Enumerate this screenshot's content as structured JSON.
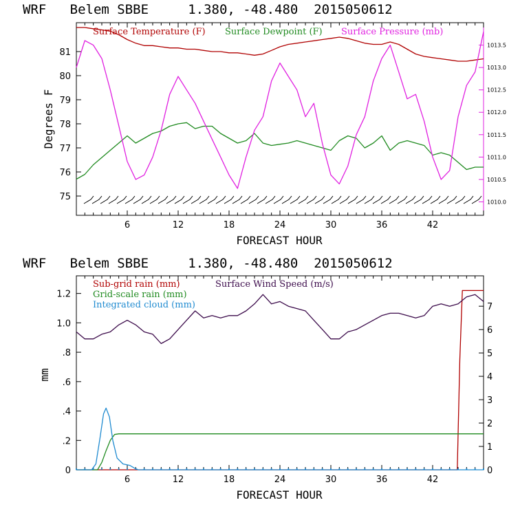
{
  "chart_data": [
    {
      "type": "line",
      "title": "WRF   Belem SBBE     1.380, -48.480  2015050612",
      "xlabel": "FORECAST HOUR",
      "ylabel": "Degrees F",
      "y2label": "",
      "xlim": [
        0,
        48
      ],
      "ylim": [
        74.2,
        82.2
      ],
      "y2lim": [
        1009.7,
        1014.0
      ],
      "x_ticks": [
        6,
        12,
        18,
        24,
        30,
        36,
        42
      ],
      "y_ticks": [
        75,
        76,
        77,
        78,
        79,
        80,
        81
      ],
      "y2_ticks": [
        "1010.0",
        "1010.5",
        "1011.0",
        "1011.5",
        "1012.0",
        "1012.5",
        "1013.0",
        "1013.5"
      ],
      "legend": [
        {
          "label": "Surface Temperature (F)",
          "color": "#b00000"
        },
        {
          "label": "Surface Dewpoint (F)",
          "color": "#1f8a1f"
        },
        {
          "label": "Surface Pressure (mb)",
          "color": "#e020e0"
        }
      ],
      "series": [
        {
          "name": "Surface Temperature (F)",
          "axis": "left",
          "color": "#b00000",
          "x": [
            0,
            1,
            2,
            3,
            4,
            5,
            6,
            7,
            8,
            9,
            10,
            11,
            12,
            13,
            14,
            15,
            16,
            17,
            18,
            19,
            20,
            21,
            22,
            23,
            24,
            25,
            26,
            27,
            28,
            29,
            30,
            31,
            32,
            33,
            34,
            35,
            36,
            37,
            38,
            39,
            40,
            41,
            42,
            43,
            44,
            45,
            46,
            47,
            48
          ],
          "values": [
            82.0,
            82.0,
            81.95,
            81.9,
            81.85,
            81.7,
            81.5,
            81.35,
            81.25,
            81.25,
            81.2,
            81.15,
            81.15,
            81.1,
            81.1,
            81.05,
            81.0,
            81.0,
            80.95,
            80.95,
            80.9,
            80.85,
            80.9,
            81.05,
            81.2,
            81.3,
            81.35,
            81.4,
            81.45,
            81.5,
            81.55,
            81.6,
            81.55,
            81.45,
            81.35,
            81.3,
            81.3,
            81.4,
            81.3,
            81.1,
            80.9,
            80.8,
            80.75,
            80.7,
            80.65,
            80.6,
            80.6,
            80.65,
            80.7
          ]
        },
        {
          "name": "Surface Dewpoint (F)",
          "axis": "left",
          "color": "#1f8a1f",
          "x": [
            0,
            1,
            2,
            3,
            4,
            5,
            6,
            7,
            8,
            9,
            10,
            11,
            12,
            13,
            14,
            15,
            16,
            17,
            18,
            19,
            20,
            21,
            22,
            23,
            24,
            25,
            26,
            27,
            28,
            29,
            30,
            31,
            32,
            33,
            34,
            35,
            36,
            37,
            38,
            39,
            40,
            41,
            42,
            43,
            44,
            45,
            46,
            47,
            48
          ],
          "values": [
            75.7,
            75.9,
            76.3,
            76.6,
            76.9,
            77.2,
            77.5,
            77.2,
            77.4,
            77.6,
            77.7,
            77.9,
            78.0,
            78.05,
            77.8,
            77.9,
            77.9,
            77.6,
            77.4,
            77.2,
            77.3,
            77.6,
            77.2,
            77.1,
            77.15,
            77.2,
            77.3,
            77.2,
            77.1,
            77.0,
            76.9,
            77.3,
            77.5,
            77.4,
            77.0,
            77.2,
            77.5,
            76.9,
            77.2,
            77.3,
            77.2,
            77.1,
            76.7,
            76.8,
            76.7,
            76.4,
            76.1,
            76.2,
            76.2
          ]
        },
        {
          "name": "Surface Pressure (mb)",
          "axis": "right",
          "color": "#e020e0",
          "x": [
            0,
            1,
            2,
            3,
            4,
            5,
            6,
            7,
            8,
            9,
            10,
            11,
            12,
            13,
            14,
            15,
            16,
            17,
            18,
            19,
            20,
            21,
            22,
            23,
            24,
            25,
            26,
            27,
            28,
            29,
            30,
            31,
            32,
            33,
            34,
            35,
            36,
            37,
            38,
            39,
            40,
            41,
            42,
            43,
            44,
            45,
            46,
            47,
            48
          ],
          "values": [
            1013.0,
            1013.6,
            1013.5,
            1013.2,
            1012.5,
            1011.7,
            1010.9,
            1010.5,
            1010.6,
            1011.0,
            1011.6,
            1012.4,
            1012.8,
            1012.5,
            1012.2,
            1011.8,
            1011.4,
            1011.0,
            1010.6,
            1010.3,
            1011.0,
            1011.6,
            1011.9,
            1012.7,
            1013.1,
            1012.8,
            1012.5,
            1011.9,
            1012.2,
            1011.3,
            1010.6,
            1010.4,
            1010.8,
            1011.5,
            1011.9,
            1012.7,
            1013.2,
            1013.5,
            1012.9,
            1012.3,
            1012.4,
            1011.8,
            1011.0,
            1010.5,
            1010.7,
            1011.9,
            1012.6,
            1012.9,
            1013.8
          ]
        }
      ]
    },
    {
      "type": "line",
      "title": "WRF   Belem SBBE     1.380, -48.480  2015050612",
      "xlabel": "FORECAST HOUR",
      "ylabel": "mm",
      "xlim": [
        0,
        48
      ],
      "ylim": [
        0,
        1.32
      ],
      "y2lim": [
        0,
        8.3
      ],
      "x_ticks": [
        6,
        12,
        18,
        24,
        30,
        36,
        42
      ],
      "y_ticks": [
        "0",
        ".2",
        ".4",
        ".6",
        ".8",
        "1.0",
        "1.2"
      ],
      "y_tick_values": [
        0,
        0.2,
        0.4,
        0.6,
        0.8,
        1.0,
        1.2
      ],
      "y2_ticks": [
        0,
        1,
        2,
        3,
        4,
        5,
        6,
        7
      ],
      "legend": [
        {
          "label": "Sub-grid rain (mm)",
          "color": "#b00000"
        },
        {
          "label": "Grid-scale rain (mm)",
          "color": "#1f8a1f"
        },
        {
          "label": "Integrated cloud (mm)",
          "color": "#1e8ad0"
        },
        {
          "label": "Surface Wind Speed (m/s)",
          "color": "#3b0a4a"
        }
      ],
      "series": [
        {
          "name": "Sub-grid rain (mm)",
          "axis": "left",
          "color": "#b00000",
          "x": [
            0,
            44.9,
            45.2,
            45.5,
            48
          ],
          "values": [
            0,
            0,
            0.75,
            1.22,
            1.22
          ]
        },
        {
          "name": "Grid-scale rain (mm)",
          "axis": "left",
          "color": "#1f8a1f",
          "x": [
            0,
            2.5,
            3.0,
            3.5,
            4.0,
            4.5,
            5.0,
            48
          ],
          "values": [
            0,
            0,
            0.05,
            0.13,
            0.2,
            0.24,
            0.245,
            0.245
          ]
        },
        {
          "name": "Integrated cloud (mm)",
          "axis": "left",
          "color": "#1e8ad0",
          "x": [
            0,
            1.8,
            2.3,
            2.8,
            3.2,
            3.5,
            3.9,
            4.3,
            4.8,
            5.5,
            6.3,
            6.9,
            7.3,
            48
          ],
          "values": [
            0,
            0,
            0.04,
            0.22,
            0.38,
            0.42,
            0.36,
            0.2,
            0.08,
            0.04,
            0.03,
            0.01,
            0,
            0
          ]
        },
        {
          "name": "Surface Wind Speed (m/s)",
          "axis": "right",
          "color": "#3b0a4a",
          "x": [
            0,
            1,
            2,
            3,
            4,
            5,
            6,
            7,
            8,
            9,
            10,
            11,
            12,
            13,
            14,
            15,
            16,
            17,
            18,
            19,
            20,
            21,
            22,
            23,
            24,
            25,
            26,
            27,
            28,
            29,
            30,
            31,
            32,
            33,
            34,
            35,
            36,
            37,
            38,
            39,
            40,
            41,
            42,
            43,
            44,
            45,
            46,
            47,
            48
          ],
          "values": [
            5.9,
            5.6,
            5.6,
            5.8,
            5.9,
            6.2,
            6.4,
            6.2,
            5.9,
            5.8,
            5.4,
            5.6,
            6.0,
            6.4,
            6.8,
            6.5,
            6.6,
            6.5,
            6.6,
            6.6,
            6.8,
            7.1,
            7.5,
            7.1,
            7.2,
            7.0,
            6.9,
            6.8,
            6.4,
            6.0,
            5.6,
            5.6,
            5.9,
            6.0,
            6.2,
            6.4,
            6.6,
            6.7,
            6.7,
            6.6,
            6.5,
            6.6,
            7.0,
            7.1,
            7.0,
            7.1,
            7.4,
            7.5,
            7.2
          ]
        }
      ]
    }
  ]
}
